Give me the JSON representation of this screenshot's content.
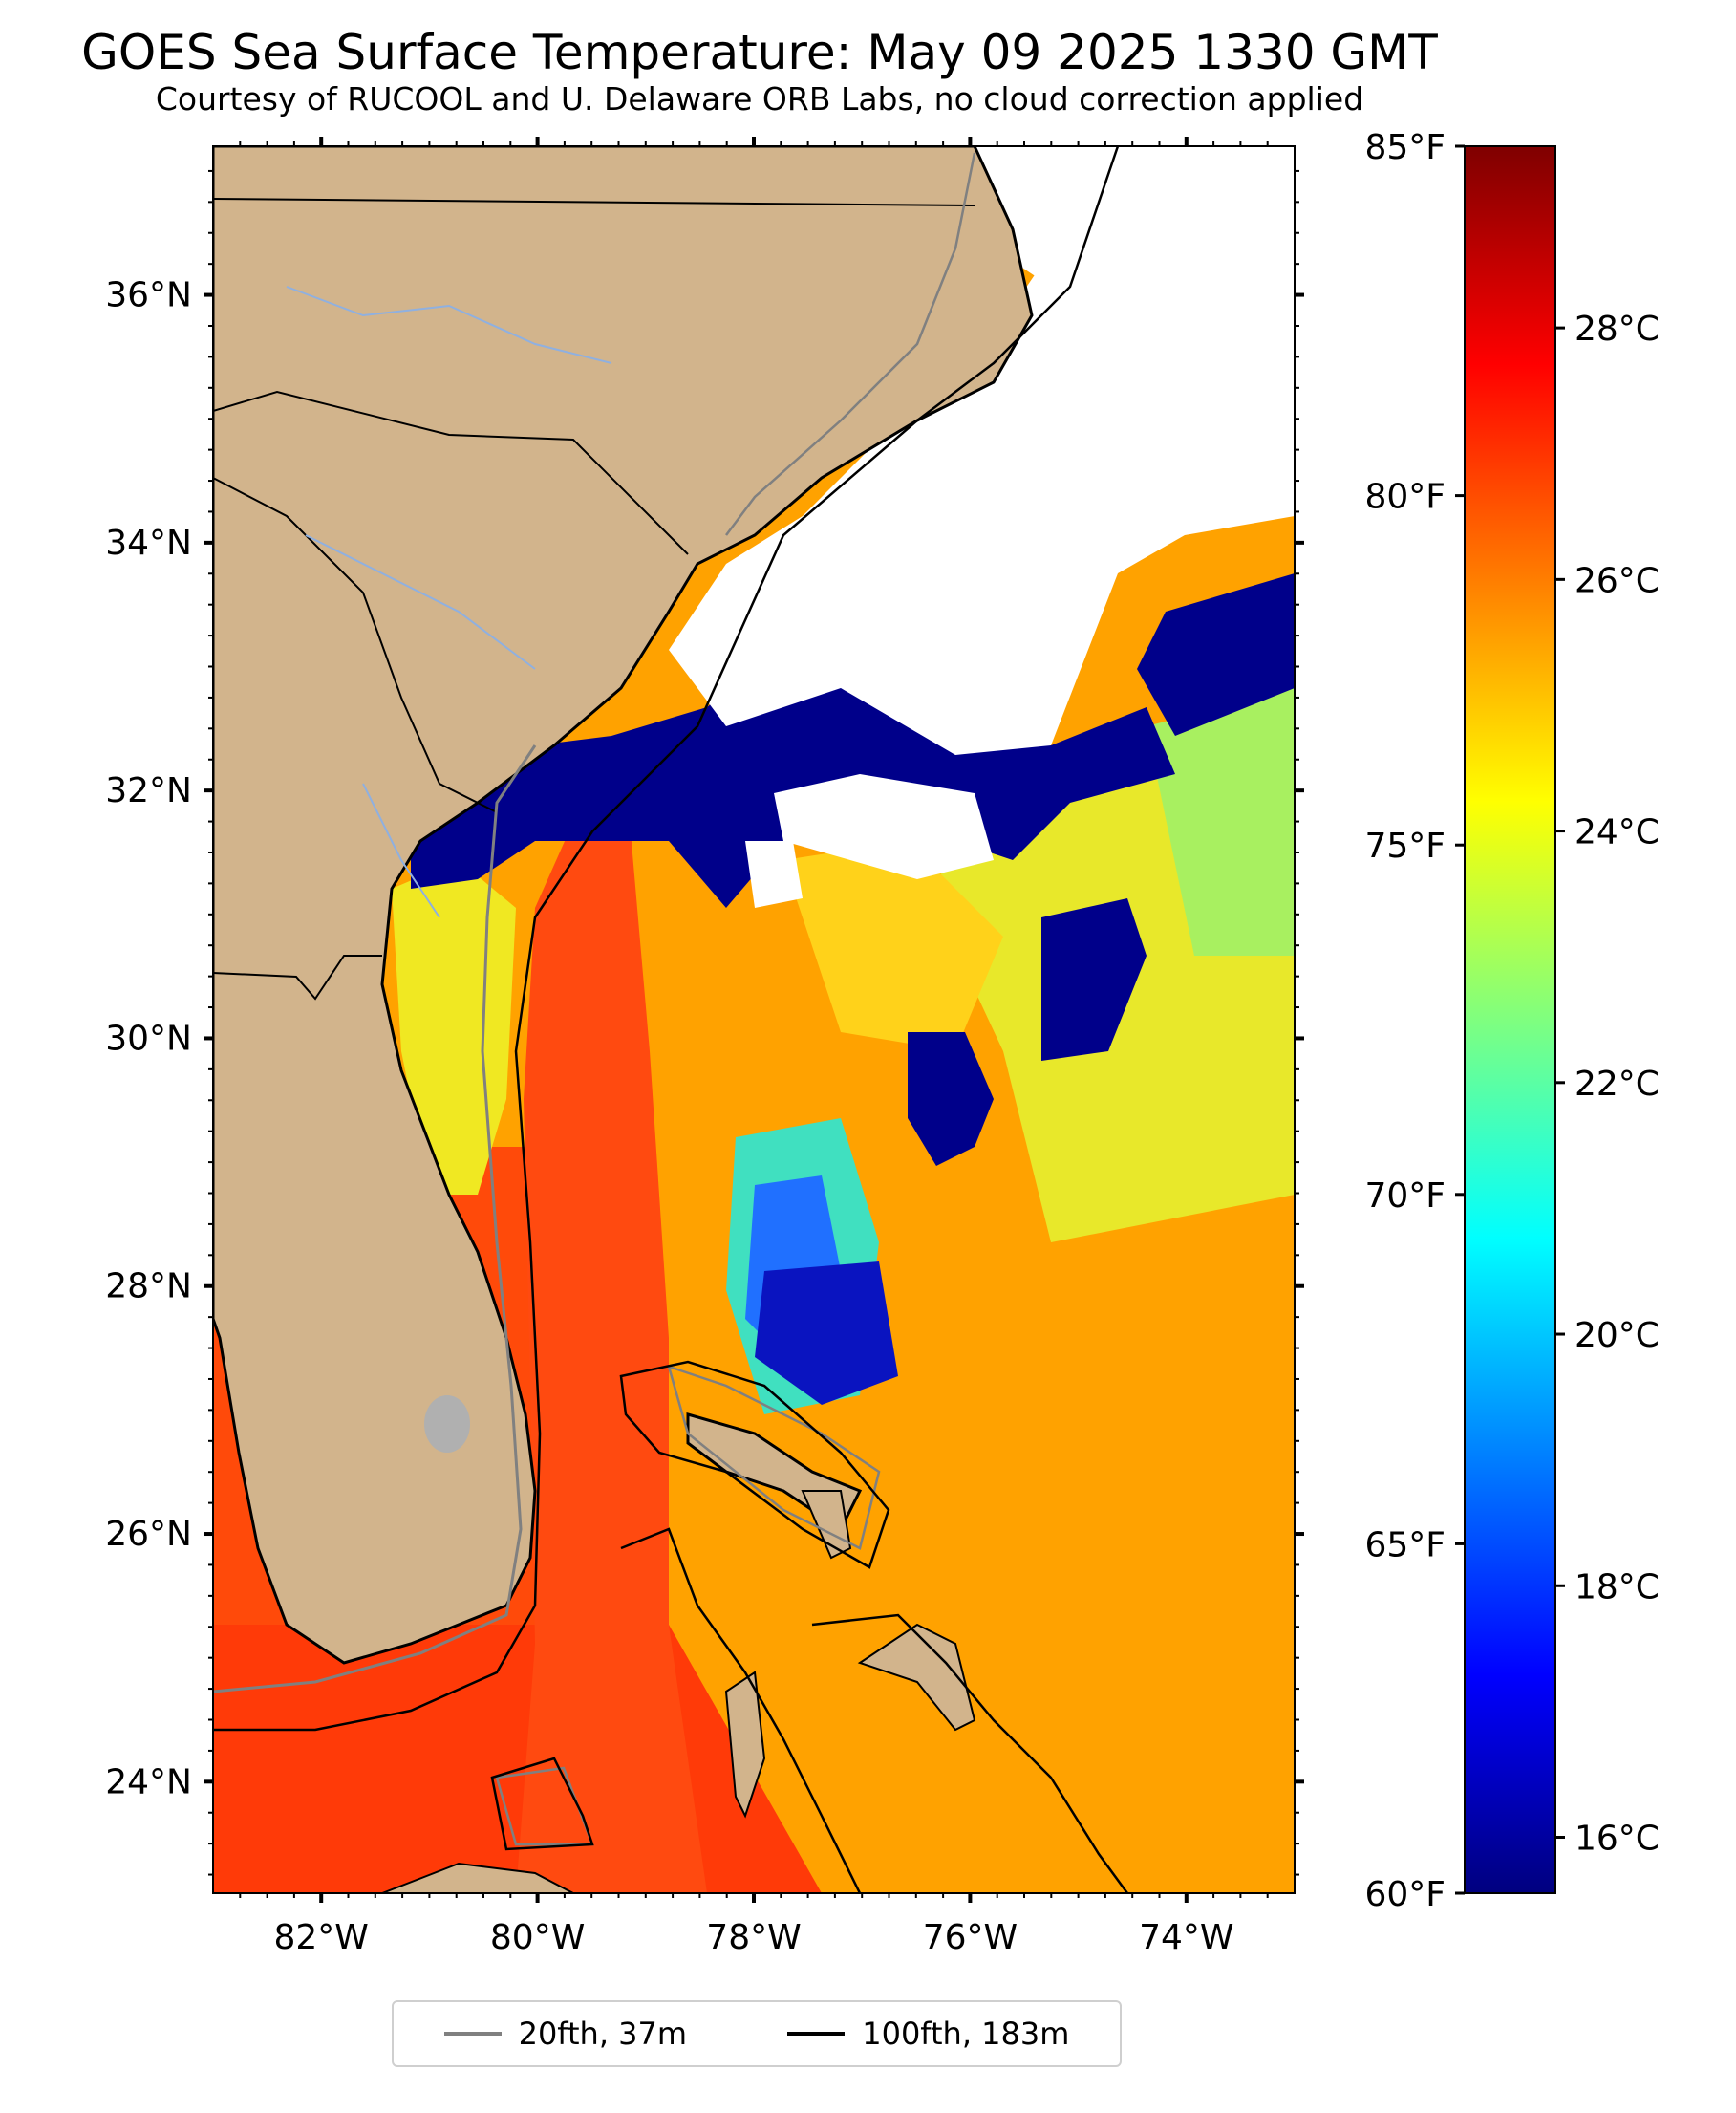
{
  "title": "GOES Sea Surface Temperature: May 09 2025 1330 GMT",
  "subtitle": "Courtesy of RUCOOL and U. Delaware ORB Labs, no cloud correction applied",
  "map": {
    "extent": {
      "lon": [
        -83,
        -73
      ],
      "lat": [
        23.1,
        37.2
      ]
    },
    "lat_ticks": [
      "24°N",
      "26°N",
      "28°N",
      "30°N",
      "32°N",
      "34°N",
      "36°N"
    ],
    "lon_ticks": [
      "82°W",
      "80°W",
      "78°W",
      "76°W",
      "74°W"
    ],
    "colors": {
      "land": "#d2b48c",
      "cloud": "#ffffff",
      "coast": "#000000",
      "isobath_20fth": "#808080",
      "isobath_100fth": "#000000"
    }
  },
  "colorbar": {
    "celsius_ticks": [
      "16°C",
      "18°C",
      "20°C",
      "22°C",
      "24°C",
      "26°C",
      "28°C"
    ],
    "fahrenheit_ticks": [
      "60°F",
      "65°F",
      "70°F",
      "75°F",
      "80°F",
      "85°F"
    ],
    "range_f": [
      60,
      85
    ],
    "colormap": "jet"
  },
  "legend": {
    "items": [
      {
        "label": "20fth, 37m",
        "color": "#808080"
      },
      {
        "label": "100fth, 183m",
        "color": "#000000"
      }
    ]
  }
}
